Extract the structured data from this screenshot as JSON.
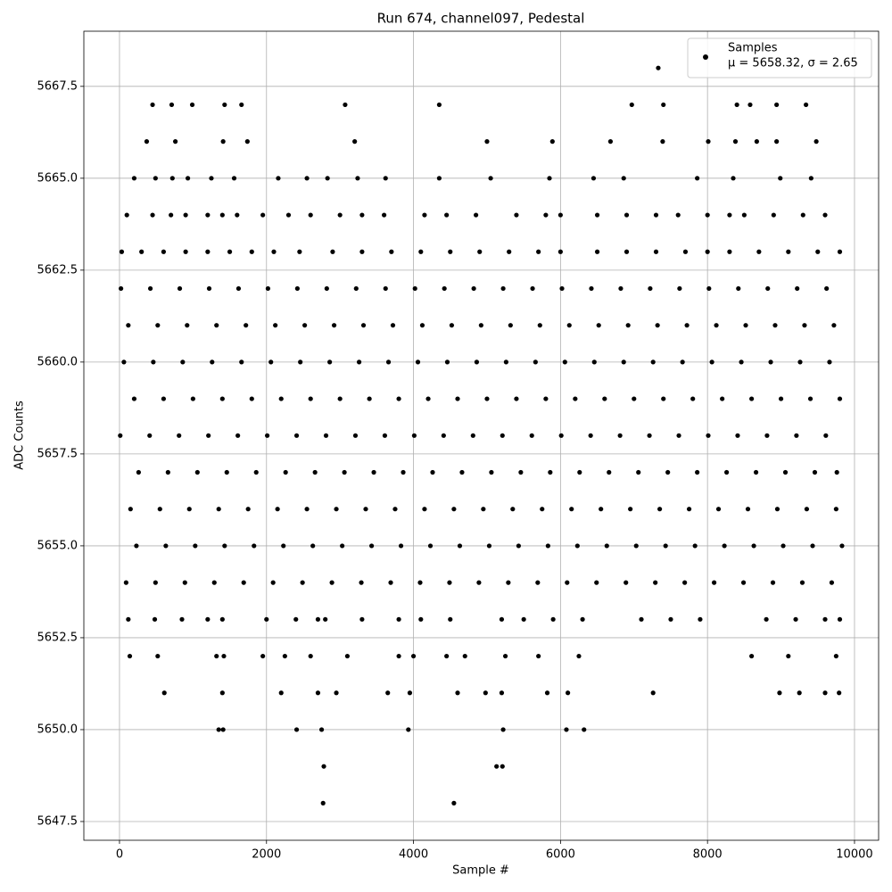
{
  "chart_data": {
    "type": "scatter",
    "title": "Run 674, channel097, Pedestal",
    "x_label": "Sample #",
    "y_label": "ADC Counts",
    "legend_position": "upper right",
    "legend_note": "μ = 5658.32, σ = 2.65",
    "grid": true,
    "xlim": [
      -485,
      10328
    ],
    "ylim": [
      5646.99,
      5669.0
    ],
    "xticks": [
      0,
      2000,
      4000,
      6000,
      8000,
      10000
    ],
    "yticks": [
      5647.5,
      {
        "value": 5650,
        "label": "5650.0"
      },
      5652.5,
      {
        "value": 5655,
        "label": "5655.0"
      },
      5657.5,
      {
        "value": 5660,
        "label": "5660.0"
      },
      5662.5,
      {
        "value": 5665,
        "label": "5665.0"
      },
      5667.5
    ],
    "series": [
      {
        "name": "Samples",
        "color": "#000000",
        "x": [
          7330,
          450,
          710,
          990,
          1430,
          1660,
          3070,
          4350,
          6970,
          7400,
          8400,
          8580,
          8940,
          9340,
          370,
          760,
          1410,
          1740,
          3200,
          5000,
          5890,
          6680,
          7390,
          8010,
          8380,
          8670,
          8940,
          9480,
          200,
          490,
          720,
          930,
          1250,
          1560,
          2160,
          2550,
          2830,
          3240,
          3620,
          4350,
          5050,
          5850,
          6450,
          6860,
          7860,
          8350,
          8990,
          9410,
          100,
          450,
          700,
          900,
          1200,
          1400,
          1600,
          1950,
          2300,
          2600,
          3000,
          3300,
          3600,
          4150,
          4450,
          4850,
          5400,
          5800,
          6000,
          6500,
          6900,
          7300,
          7600,
          8000,
          8300,
          8500,
          8900,
          9300,
          9600,
          30,
          300,
          600,
          900,
          1200,
          1500,
          1800,
          2100,
          2450,
          2900,
          3300,
          3700,
          4100,
          4500,
          4900,
          5300,
          5700,
          6000,
          6500,
          6900,
          7300,
          7700,
          8000,
          8300,
          8700,
          9100,
          9500,
          9800,
          20,
          420,
          820,
          1220,
          1620,
          2020,
          2420,
          2820,
          3220,
          3620,
          4020,
          4420,
          4820,
          5220,
          5620,
          6020,
          6420,
          6820,
          7220,
          7620,
          8020,
          8420,
          8820,
          9220,
          9620,
          120,
          520,
          920,
          1320,
          1720,
          2120,
          2520,
          2920,
          3320,
          3720,
          4120,
          4520,
          4920,
          5320,
          5720,
          6120,
          6520,
          6920,
          7320,
          7720,
          8120,
          8520,
          8920,
          9320,
          9720,
          60,
          460,
          860,
          1260,
          1660,
          2060,
          2460,
          2860,
          3260,
          3660,
          4060,
          4460,
          4860,
          5260,
          5660,
          6060,
          6460,
          6860,
          7260,
          7660,
          8060,
          8460,
          8860,
          9260,
          9660,
          200,
          600,
          1000,
          1400,
          1800,
          2200,
          2600,
          3000,
          3400,
          3800,
          4200,
          4600,
          5000,
          5400,
          5800,
          6200,
          6600,
          7000,
          7400,
          7800,
          8200,
          8600,
          9000,
          9400,
          9800,
          10,
          410,
          810,
          1210,
          1610,
          2010,
          2410,
          2810,
          3210,
          3610,
          4010,
          4410,
          4810,
          5210,
          5610,
          6010,
          6410,
          6810,
          7210,
          7610,
          8010,
          8410,
          8810,
          9210,
          9610,
          260,
          660,
          1060,
          1460,
          1860,
          2260,
          2660,
          3060,
          3460,
          3860,
          4260,
          4660,
          5060,
          5460,
          5860,
          6260,
          6660,
          7060,
          7460,
          7860,
          8260,
          8660,
          9060,
          9460,
          9760,
          150,
          550,
          950,
          1350,
          1750,
          2150,
          2550,
          2950,
          3350,
          3750,
          4150,
          4550,
          4950,
          5350,
          5750,
          6150,
          6550,
          6950,
          7350,
          7750,
          8150,
          8550,
          8950,
          9350,
          9750,
          230,
          630,
          1030,
          1430,
          1830,
          2230,
          2630,
          3030,
          3430,
          3830,
          4230,
          4630,
          5030,
          5430,
          5830,
          6230,
          6630,
          7030,
          7430,
          7830,
          8230,
          8630,
          9030,
          9430,
          9830,
          90,
          490,
          890,
          1290,
          1690,
          2090,
          2490,
          2890,
          3290,
          3690,
          4090,
          4490,
          4890,
          5290,
          5690,
          6090,
          6490,
          6890,
          7290,
          7690,
          8090,
          8490,
          8890,
          9290,
          9690,
          120,
          480,
          850,
          1200,
          1400,
          2000,
          2400,
          2700,
          2800,
          3300,
          3800,
          4100,
          4500,
          5200,
          5500,
          5900,
          6300,
          7100,
          7500,
          7900,
          8800,
          9200,
          9600,
          9800,
          140,
          520,
          1320,
          1420,
          1950,
          2250,
          2600,
          3100,
          3800,
          4000,
          4450,
          4700,
          5250,
          5700,
          6250,
          8600,
          9100,
          9750,
          610,
          1400,
          2200,
          2700,
          2950,
          3650,
          3950,
          4600,
          4980,
          5200,
          5820,
          6100,
          7260,
          8980,
          9250,
          9600,
          9790,
          1350,
          1410,
          2410,
          2750,
          3930,
          5220,
          6080,
          6320,
          2780,
          5130,
          5210,
          2770,
          4550
        ],
        "values": [
          5668,
          5667,
          5667,
          5667,
          5667,
          5667,
          5667,
          5667,
          5667,
          5667,
          5667,
          5667,
          5667,
          5667,
          5666,
          5666,
          5666,
          5666,
          5666,
          5666,
          5666,
          5666,
          5666,
          5666,
          5666,
          5666,
          5666,
          5666,
          5665,
          5665,
          5665,
          5665,
          5665,
          5665,
          5665,
          5665,
          5665,
          5665,
          5665,
          5665,
          5665,
          5665,
          5665,
          5665,
          5665,
          5665,
          5665,
          5665,
          5664,
          5664,
          5664,
          5664,
          5664,
          5664,
          5664,
          5664,
          5664,
          5664,
          5664,
          5664,
          5664,
          5664,
          5664,
          5664,
          5664,
          5664,
          5664,
          5664,
          5664,
          5664,
          5664,
          5664,
          5664,
          5664,
          5664,
          5664,
          5664,
          5663,
          5663,
          5663,
          5663,
          5663,
          5663,
          5663,
          5663,
          5663,
          5663,
          5663,
          5663,
          5663,
          5663,
          5663,
          5663,
          5663,
          5663,
          5663,
          5663,
          5663,
          5663,
          5663,
          5663,
          5663,
          5663,
          5663,
          5663,
          5662,
          5662,
          5662,
          5662,
          5662,
          5662,
          5662,
          5662,
          5662,
          5662,
          5662,
          5662,
          5662,
          5662,
          5662,
          5662,
          5662,
          5662,
          5662,
          5662,
          5662,
          5662,
          5662,
          5662,
          5662,
          5661,
          5661,
          5661,
          5661,
          5661,
          5661,
          5661,
          5661,
          5661,
          5661,
          5661,
          5661,
          5661,
          5661,
          5661,
          5661,
          5661,
          5661,
          5661,
          5661,
          5661,
          5661,
          5661,
          5661,
          5661,
          5660,
          5660,
          5660,
          5660,
          5660,
          5660,
          5660,
          5660,
          5660,
          5660,
          5660,
          5660,
          5660,
          5660,
          5660,
          5660,
          5660,
          5660,
          5660,
          5660,
          5660,
          5660,
          5660,
          5660,
          5660,
          5659,
          5659,
          5659,
          5659,
          5659,
          5659,
          5659,
          5659,
          5659,
          5659,
          5659,
          5659,
          5659,
          5659,
          5659,
          5659,
          5659,
          5659,
          5659,
          5659,
          5659,
          5659,
          5659,
          5659,
          5659,
          5658,
          5658,
          5658,
          5658,
          5658,
          5658,
          5658,
          5658,
          5658,
          5658,
          5658,
          5658,
          5658,
          5658,
          5658,
          5658,
          5658,
          5658,
          5658,
          5658,
          5658,
          5658,
          5658,
          5658,
          5658,
          5657,
          5657,
          5657,
          5657,
          5657,
          5657,
          5657,
          5657,
          5657,
          5657,
          5657,
          5657,
          5657,
          5657,
          5657,
          5657,
          5657,
          5657,
          5657,
          5657,
          5657,
          5657,
          5657,
          5657,
          5657,
          5656,
          5656,
          5656,
          5656,
          5656,
          5656,
          5656,
          5656,
          5656,
          5656,
          5656,
          5656,
          5656,
          5656,
          5656,
          5656,
          5656,
          5656,
          5656,
          5656,
          5656,
          5656,
          5656,
          5656,
          5656,
          5655,
          5655,
          5655,
          5655,
          5655,
          5655,
          5655,
          5655,
          5655,
          5655,
          5655,
          5655,
          5655,
          5655,
          5655,
          5655,
          5655,
          5655,
          5655,
          5655,
          5655,
          5655,
          5655,
          5655,
          5655,
          5654,
          5654,
          5654,
          5654,
          5654,
          5654,
          5654,
          5654,
          5654,
          5654,
          5654,
          5654,
          5654,
          5654,
          5654,
          5654,
          5654,
          5654,
          5654,
          5654,
          5654,
          5654,
          5654,
          5654,
          5654,
          5653,
          5653,
          5653,
          5653,
          5653,
          5653,
          5653,
          5653,
          5653,
          5653,
          5653,
          5653,
          5653,
          5653,
          5653,
          5653,
          5653,
          5653,
          5653,
          5653,
          5653,
          5653,
          5653,
          5653,
          5652,
          5652,
          5652,
          5652,
          5652,
          5652,
          5652,
          5652,
          5652,
          5652,
          5652,
          5652,
          5652,
          5652,
          5652,
          5652,
          5652,
          5652,
          5651,
          5651,
          5651,
          5651,
          5651,
          5651,
          5651,
          5651,
          5651,
          5651,
          5651,
          5651,
          5651,
          5651,
          5651,
          5651,
          5651,
          5650,
          5650,
          5650,
          5650,
          5650,
          5650,
          5650,
          5650,
          5649,
          5649,
          5649,
          5648,
          5648
        ]
      }
    ]
  }
}
